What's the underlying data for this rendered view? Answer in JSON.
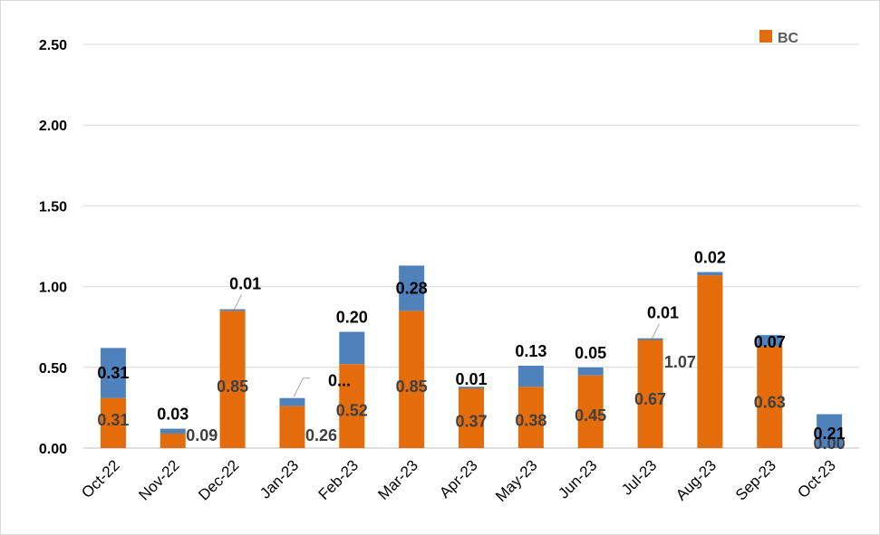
{
  "chart_data": {
    "type": "bar",
    "stacked": true,
    "title": "",
    "xlabel": "",
    "ylabel": "",
    "ylim": [
      0,
      2.5
    ],
    "yticks": [
      "0.00",
      "0.50",
      "1.00",
      "1.50",
      "2.00",
      "2.50"
    ],
    "grid": true,
    "legend_position": "top-right",
    "categories": [
      "Oct-22",
      "Nov-22",
      "Dec-22",
      "Jan-23",
      "Feb-23",
      "Mar-23",
      "Apr-23",
      "May-23",
      "Jun-23",
      "Jul-23",
      "Aug-23",
      "Sep-23",
      "Oct-23"
    ],
    "series": [
      {
        "name": "BC",
        "color": "#E46C0A",
        "values": [
          0.31,
          0.09,
          0.85,
          0.26,
          0.52,
          0.85,
          0.37,
          0.38,
          0.45,
          0.67,
          1.07,
          0.63,
          0.0
        ],
        "labels": [
          "0.31",
          "0.09",
          "0.85",
          "0.26",
          "0.52",
          "0.85",
          "0.37",
          "0.38",
          "0.45",
          "0.67",
          "1.07",
          "0.63",
          "0.00"
        ]
      },
      {
        "name": "",
        "color": "#4F81BD",
        "values": [
          0.31,
          0.03,
          0.01,
          0.05,
          0.2,
          0.28,
          0.01,
          0.13,
          0.05,
          0.01,
          0.02,
          0.07,
          0.21
        ],
        "labels": [
          "0.31",
          "0.03",
          "0.01",
          "0...",
          "0.20",
          "0.28",
          "0.01",
          "0.13",
          "0.05",
          "0.01",
          "0.02",
          "0.07",
          "0.21"
        ]
      }
    ]
  }
}
